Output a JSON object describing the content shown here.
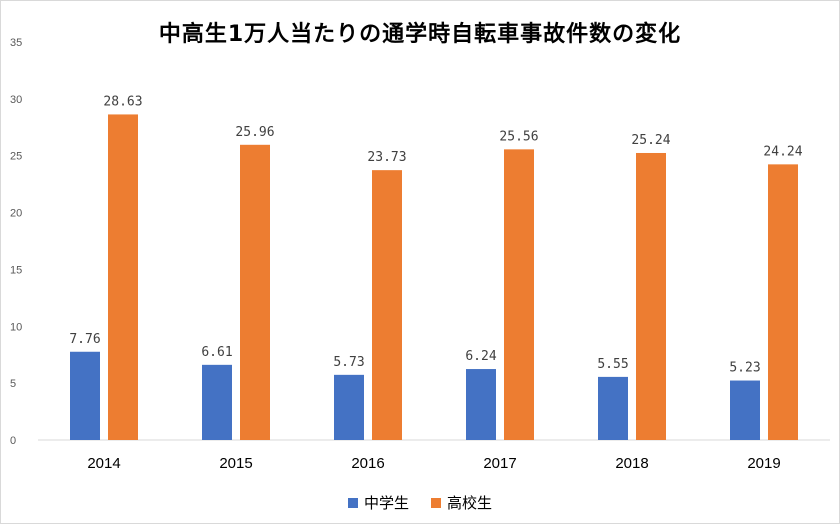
{
  "chart_data": {
    "type": "bar",
    "title": "中高生1万人当たりの通学時自転車事故件数の変化",
    "categories": [
      "2014",
      "2015",
      "2016",
      "2017",
      "2018",
      "2019"
    ],
    "series": [
      {
        "name": "中学生",
        "values": [
          7.76,
          6.61,
          5.73,
          6.24,
          5.55,
          5.23
        ],
        "labels": [
          "7.76",
          "6.61",
          "5.73",
          "6.24",
          "5.55",
          "5.23"
        ],
        "color": "#4472c4"
      },
      {
        "name": "高校生",
        "values": [
          28.63,
          25.96,
          23.73,
          25.56,
          25.24,
          24.24
        ],
        "labels": [
          "28.63",
          "25.96",
          "23.73",
          "25.56",
          "25.24",
          "24.24"
        ],
        "color": "#ed7d31"
      }
    ],
    "xlabel": "",
    "ylabel": "",
    "ylim": [
      0,
      35
    ],
    "yticks": [
      "0",
      "5",
      "10",
      "15",
      "20",
      "25",
      "30",
      "35"
    ],
    "grid": false,
    "legend_position": "bottom"
  }
}
